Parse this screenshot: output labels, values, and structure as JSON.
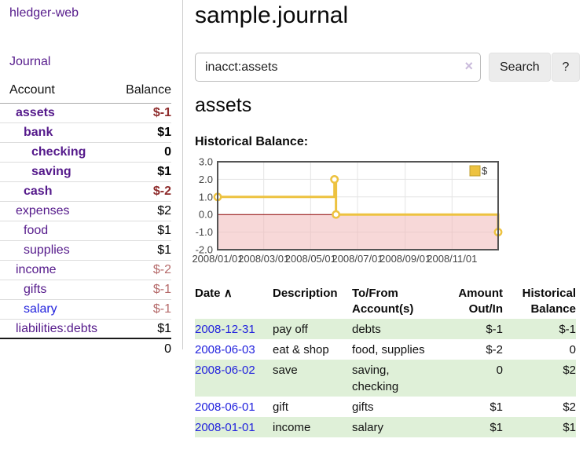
{
  "sidebar": {
    "app_title": "hledger-web",
    "journal_link": "Journal",
    "table": {
      "account_header": "Account",
      "balance_header": "Balance",
      "rows": [
        {
          "account": "assets",
          "balance": "$-1",
          "depth": 1,
          "bold": true,
          "balance_class": "neg"
        },
        {
          "account": "bank",
          "balance": "$1",
          "depth": 2,
          "bold": true,
          "balance_class": ""
        },
        {
          "account": "checking",
          "balance": "0",
          "depth": 3,
          "bold": true,
          "balance_class": ""
        },
        {
          "account": "saving",
          "balance": "$1",
          "depth": 3,
          "bold": true,
          "balance_class": ""
        },
        {
          "account": "cash",
          "balance": "$-2",
          "depth": 2,
          "bold": true,
          "balance_class": "neg"
        },
        {
          "account": "expenses",
          "balance": "$2",
          "depth": 1,
          "bold": false,
          "balance_class": ""
        },
        {
          "account": "food",
          "balance": "$1",
          "depth": 2,
          "bold": false,
          "balance_class": ""
        },
        {
          "account": "supplies",
          "balance": "$1",
          "depth": 2,
          "bold": false,
          "balance_class": ""
        },
        {
          "account": "income",
          "balance": "$-2",
          "depth": 1,
          "bold": false,
          "balance_class": "neg-muted"
        },
        {
          "account": "gifts",
          "balance": "$-1",
          "depth": 2,
          "bold": false,
          "balance_class": "neg-muted"
        },
        {
          "account": "salary",
          "balance": "$-1",
          "depth": 2,
          "bold": false,
          "balance_class": "neg-muted",
          "link": "blue"
        },
        {
          "account": "liabilities:debts",
          "balance": "$1",
          "depth": 1,
          "bold": false,
          "balance_class": ""
        }
      ],
      "total": "0"
    }
  },
  "main": {
    "title": "sample.journal",
    "search": {
      "value": "inacct:assets",
      "clear_icon": "×",
      "search_label": "Search",
      "help_label": "?"
    },
    "account_heading": "assets",
    "chart_label": "Historical Balance:"
  },
  "chart_data": {
    "type": "line",
    "title": "Historical Balance:",
    "series": [
      {
        "name": "$",
        "step": true,
        "points": [
          [
            "2008-01-01",
            1
          ],
          [
            "2008-06-01",
            2
          ],
          [
            "2008-06-03",
            0
          ],
          [
            "2008-12-31",
            -1
          ]
        ]
      }
    ],
    "xlim": [
      "2008-01-01",
      "2008-12-31"
    ],
    "ylim": [
      -2,
      3
    ],
    "yticks": [
      3,
      2,
      1,
      0,
      -1,
      -2
    ],
    "xticks": [
      {
        "date": "2008-01-01",
        "label": "2008/01/01"
      },
      {
        "date": "2008-03-01",
        "label": "2008/03/01"
      },
      {
        "date": "2008-05-01",
        "label": "2008/05/01"
      },
      {
        "date": "2008-07-01",
        "label": "2008/07/01"
      },
      {
        "date": "2008-09-01",
        "label": "2008/09/01"
      },
      {
        "date": "2008-11-01",
        "label": "2008/11/01"
      }
    ],
    "legend": {
      "label": "$",
      "position": "top-right"
    },
    "grid": true,
    "colors": {
      "line": "#edc240",
      "negative_region": "#f0b8b8",
      "zero_line": "#8b0000",
      "grid": "#e4e4e4",
      "border": "#545454"
    }
  },
  "register": {
    "sort_icon": "∧",
    "headers": {
      "date": "Date",
      "description": "Description",
      "tofrom": "To/From Account(s)",
      "amount": "Amount Out/In",
      "balance": "Historical Balance"
    },
    "rows": [
      {
        "date": "2008-12-31",
        "description": "pay off",
        "accounts": "debts",
        "amount": "$-1",
        "balance": "$-1",
        "amount_negative": true,
        "balance_negative": true,
        "highlight": true
      },
      {
        "date": "2008-06-03",
        "description": "eat & shop",
        "accounts": "food, supplies",
        "amount": "$-2",
        "balance": "0",
        "amount_negative": true,
        "balance_negative": false,
        "highlight": false
      },
      {
        "date": "2008-06-02",
        "description": "save",
        "accounts": "saving, checking",
        "amount": "0",
        "balance": "$2",
        "amount_negative": false,
        "balance_negative": false,
        "highlight": true
      },
      {
        "date": "2008-06-01",
        "description": "gift",
        "accounts": "gifts",
        "amount": "$1",
        "balance": "$2",
        "amount_negative": false,
        "balance_negative": false,
        "highlight": false
      },
      {
        "date": "2008-01-01",
        "description": "income",
        "accounts": "salary",
        "amount": "$1",
        "balance": "$1",
        "amount_negative": false,
        "balance_negative": false,
        "highlight": true
      }
    ]
  }
}
